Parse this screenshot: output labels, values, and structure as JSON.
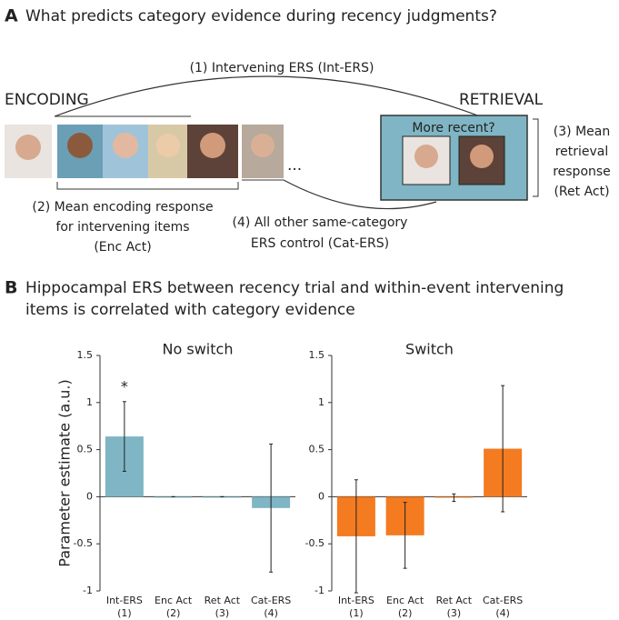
{
  "panel_a": {
    "letter": "A",
    "title": "What predicts category evidence during recency judgments?",
    "int_ers": "(1) Intervening ERS (Int-ERS)",
    "encoding": "ENCODING",
    "retrieval": "RETRIEVAL",
    "question": "More recent?",
    "ellipsis": "...",
    "ret_act": [
      "(3) Mean",
      "retrieval",
      "response",
      "(Ret Act)"
    ],
    "enc_act": [
      "(2) Mean encoding response",
      "for intervening items",
      "(Enc Act)"
    ],
    "cat_ers": [
      "(4) All other same-category",
      "ERS control (Cat-ERS)"
    ]
  },
  "panel_b": {
    "letter": "B",
    "title": [
      "Hippocampal ERS between recency trial and within-event intervening",
      "items is correlated with category evidence"
    ]
  },
  "chart_data": [
    {
      "type": "bar",
      "title": "No switch",
      "ylabel": "Parameter estimate (a.u.)",
      "categories": [
        "Int-ERS",
        "Enc Act",
        "Ret Act",
        "Cat-ERS"
      ],
      "category_numbers": [
        "(1)",
        "(2)",
        "(3)",
        "(4)"
      ],
      "values": [
        0.64,
        0.0,
        0.0,
        -0.12
      ],
      "errors": [
        0.37,
        0.0,
        0.0,
        0.68
      ],
      "value_annotations": [
        "*",
        null,
        null,
        null
      ],
      "color": "#7fb5c4",
      "ylim": [
        -1,
        1.5
      ],
      "yticks": [
        -1,
        -0.5,
        0,
        0.5,
        1,
        1.5
      ]
    },
    {
      "type": "bar",
      "title": "Switch",
      "categories": [
        "Int-ERS",
        "Enc Act",
        "Ret Act",
        "Cat-ERS"
      ],
      "category_numbers": [
        "(1)",
        "(2)",
        "(3)",
        "(4)"
      ],
      "values": [
        -0.42,
        -0.41,
        -0.01,
        0.51
      ],
      "errors": [
        0.6,
        0.35,
        0.04,
        0.67
      ],
      "color": "#f47b20",
      "ylim": [
        -1,
        1.5
      ],
      "yticks": [
        -1,
        -0.5,
        0,
        0.5,
        1,
        1.5
      ]
    }
  ]
}
